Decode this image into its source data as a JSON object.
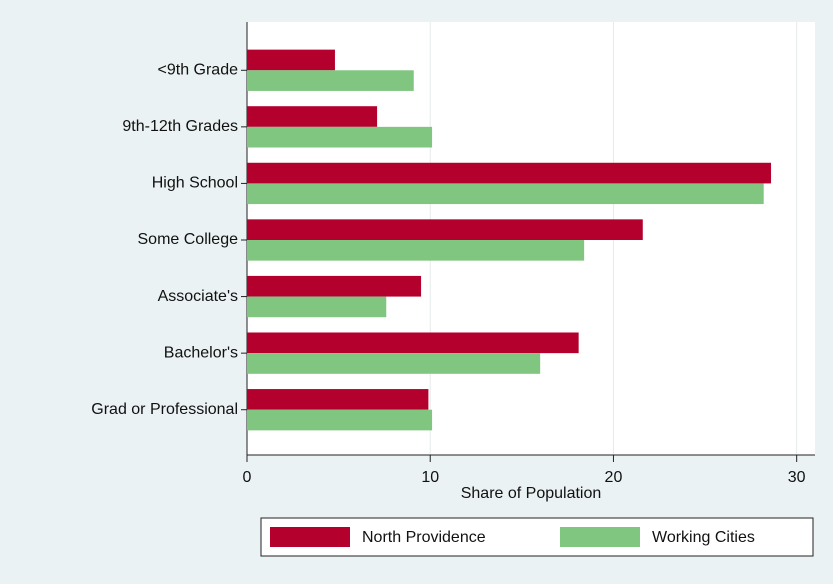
{
  "chart_data": {
    "type": "hbar",
    "xlabel": "Share of Population",
    "categories": [
      "<9th Grade",
      "9th-12th Grades",
      "High School",
      "Some College",
      "Associate's",
      "Bachelor's",
      "Grad or Professional"
    ],
    "series": [
      {
        "name": "North Providence",
        "color": "#b3002d",
        "values": [
          4.8,
          7.1,
          28.6,
          21.6,
          9.5,
          18.1,
          9.9
        ]
      },
      {
        "name": "Working Cities",
        "color": "#80c580",
        "values": [
          9.1,
          10.1,
          28.2,
          18.4,
          7.6,
          16.0,
          10.1
        ]
      }
    ],
    "xlim": [
      0,
      31
    ],
    "xticks": [
      0,
      10,
      20,
      30
    ],
    "grid": true,
    "legend": "bottom"
  }
}
